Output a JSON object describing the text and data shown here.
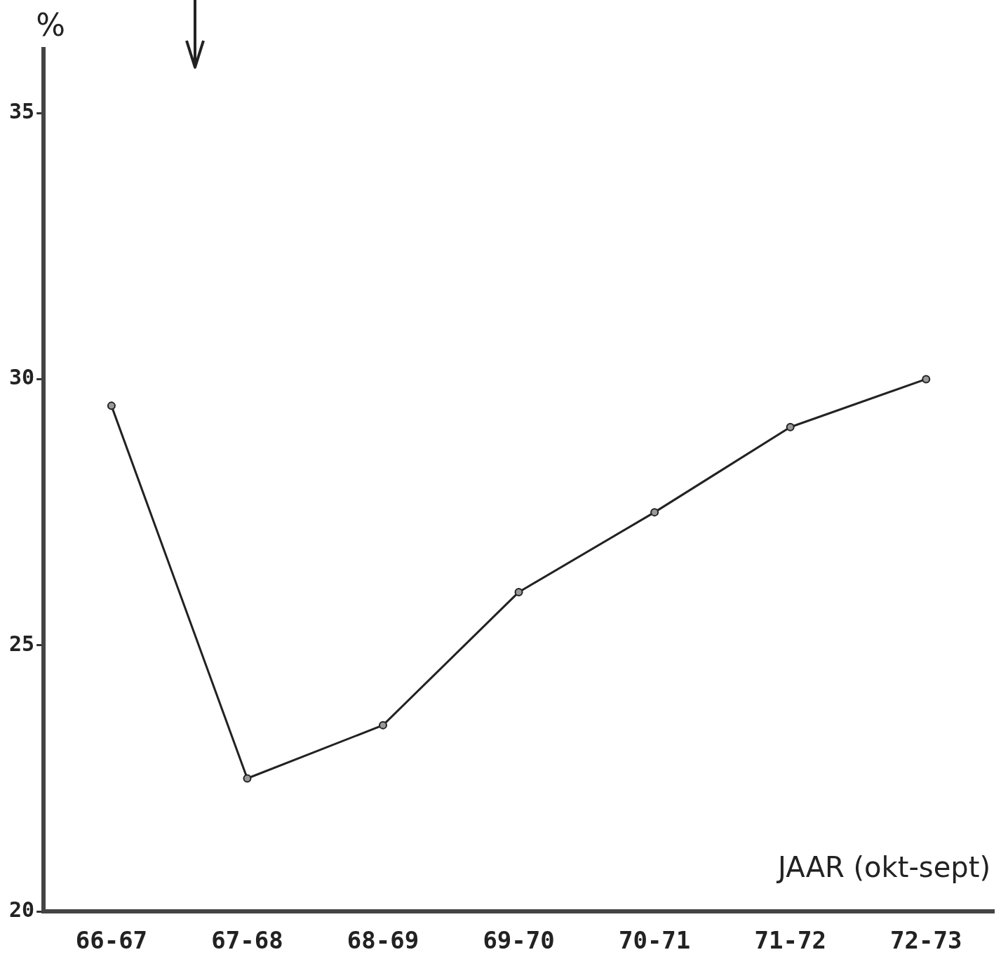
{
  "chart_data": {
    "type": "line",
    "xlabel": "JAAR (okt-sept)",
    "ylabel": "%",
    "categories": [
      "66-67",
      "67-68",
      "68-69",
      "69-70",
      "70-71",
      "71-72",
      "72-73"
    ],
    "values": [
      29.5,
      22.5,
      23.5,
      26.0,
      27.5,
      29.1,
      30.0
    ],
    "color": "#222222",
    "marker": "circle",
    "line_style": "solid",
    "ylim": [
      20,
      36.2
    ],
    "yticks": [
      20,
      25,
      30,
      35
    ]
  }
}
